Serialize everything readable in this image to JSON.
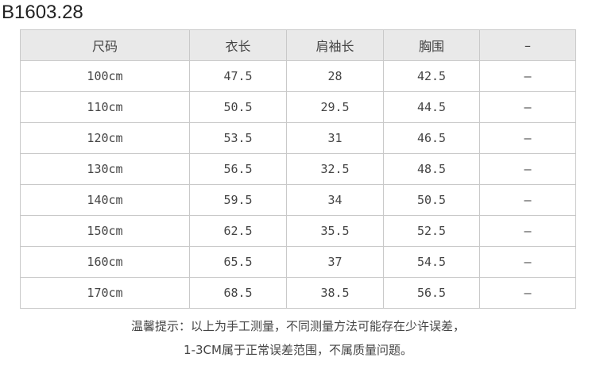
{
  "code": "B1603.28",
  "headers": [
    "尺码",
    "衣长",
    "肩袖长",
    "胸围",
    "–"
  ],
  "rows": [
    [
      "100cm",
      "47.5",
      "28",
      "42.5",
      "–"
    ],
    [
      "110cm",
      "50.5",
      "29.5",
      "44.5",
      "–"
    ],
    [
      "120cm",
      "53.5",
      "31",
      "46.5",
      "–"
    ],
    [
      "130cm",
      "56.5",
      "32.5",
      "48.5",
      "–"
    ],
    [
      "140cm",
      "59.5",
      "34",
      "50.5",
      "–"
    ],
    [
      "150cm",
      "62.5",
      "35.5",
      "52.5",
      "–"
    ],
    [
      "160cm",
      "65.5",
      "37",
      "54.5",
      "–"
    ],
    [
      "170cm",
      "68.5",
      "38.5",
      "56.5",
      "–"
    ]
  ],
  "note": [
    "温馨提示：以上为手工测量，不同测量方法可能存在少许误差，",
    "1-3CM属于正常误差范围，不属质量问题。"
  ]
}
